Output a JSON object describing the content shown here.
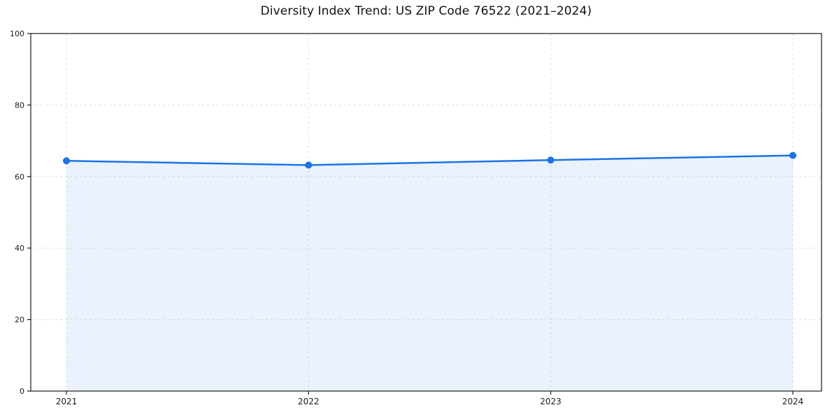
{
  "chart_data": {
    "type": "area",
    "title": "Diversity Index Trend: US ZIP Code 76522 (2021–2024)",
    "x": [
      2021,
      2022,
      2023,
      2024
    ],
    "values": [
      64.4,
      63.2,
      64.6,
      65.9
    ],
    "series_name": "Diversity Index",
    "xlabel": "",
    "ylabel": "",
    "ylim": [
      0,
      100
    ],
    "yticks": [
      0,
      20,
      40,
      60,
      80,
      100
    ],
    "xticks": [
      "2021",
      "2022",
      "2023",
      "2024"
    ],
    "grid": "on",
    "grid_style": "dashed",
    "legend_position": "none",
    "line_color": "#1a73e8",
    "marker": "circle",
    "fill_color": "#1a73e8",
    "fill_opacity": 0.09,
    "grid_color": "#dcdcdc",
    "axis_color": "#1a1a1a",
    "tick_label_color": "#1a1a1a",
    "background_color": "#ffffff"
  }
}
